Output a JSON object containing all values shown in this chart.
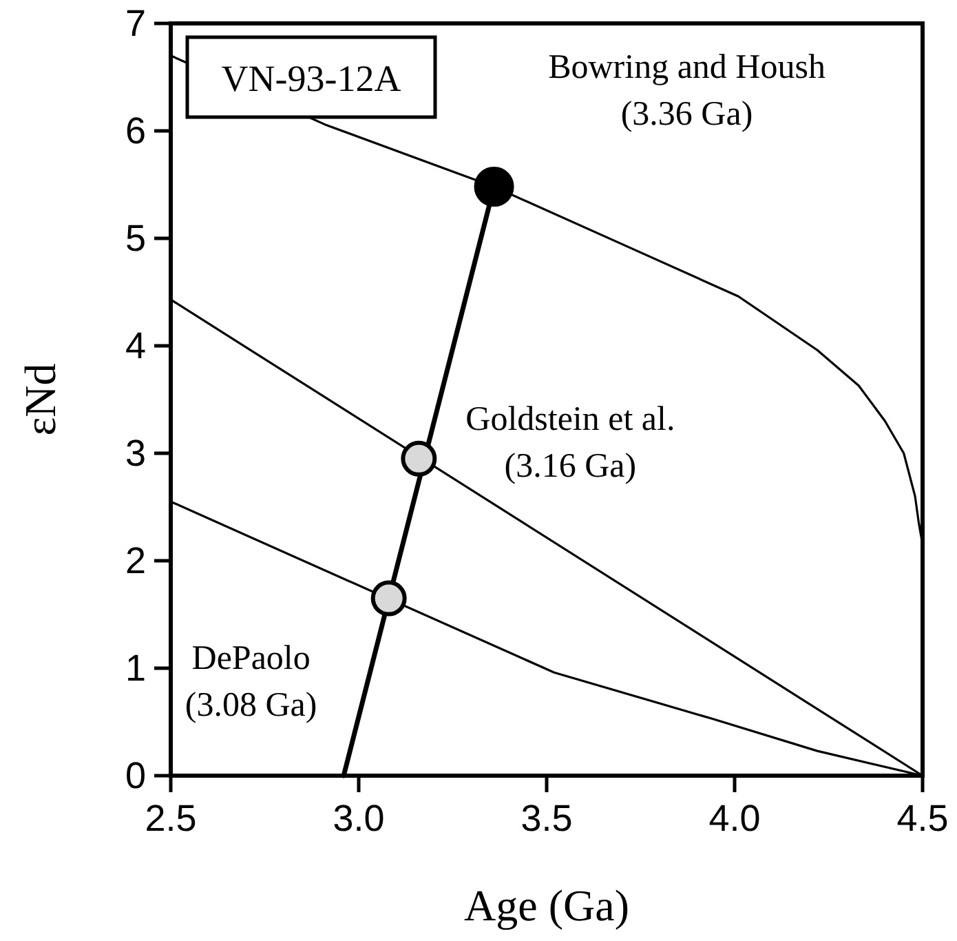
{
  "chart_data": {
    "type": "line",
    "xlabel": "Age (Ga)",
    "ylabel": "εNd",
    "xlim": [
      2.5,
      4.5
    ],
    "ylim": [
      0,
      7
    ],
    "xticks": [
      {
        "value": 2.5,
        "label": "2.5"
      },
      {
        "value": 3.0,
        "label": "3.0"
      },
      {
        "value": 3.5,
        "label": "3.5"
      },
      {
        "value": 4.0,
        "label": "4.0"
      },
      {
        "value": 4.5,
        "label": "4.5"
      }
    ],
    "yticks": [
      0,
      1,
      2,
      3,
      4,
      5,
      6,
      7
    ],
    "grid": false,
    "line_style": "solid",
    "series": [
      {
        "color": "#000000",
        "x": [
          2.5,
          2.91,
          3.36,
          3.73,
          4.01,
          4.22,
          4.33,
          4.4,
          4.45,
          4.48,
          4.49,
          4.5
        ],
        "values": [
          6.7,
          6.06,
          5.48,
          4.9,
          4.46,
          3.96,
          3.63,
          3.3,
          3.0,
          2.6,
          2.35,
          2.15
        ]
      },
      {
        "color": "#000000",
        "x": [
          2.5,
          4.5
        ],
        "values": [
          4.43,
          0
        ]
      },
      {
        "color": "#000000",
        "x": [
          2.5,
          3.52,
          3.94,
          4.22,
          4.5
        ],
        "values": [
          2.55,
          0.96,
          0.53,
          0.23,
          0
        ]
      },
      {
        "color": "#000000",
        "x": [
          2.96,
          3.36
        ],
        "values": [
          0,
          5.48
        ]
      },
      {
        "type": "scatter",
        "color": "#000000",
        "marker": "circle",
        "x": [
          3.36
        ],
        "values": [
          5.48
        ]
      },
      {
        "type": "scatter",
        "color": "#d9d9d9",
        "marker": "circle",
        "x": [
          3.16,
          3.08
        ],
        "values": [
          2.95,
          1.65
        ]
      }
    ],
    "annotations": [
      "VN-93-12A",
      {
        "text": "Bowring and Housh\n(3.36 Ga)",
        "x": 3.36,
        "y": 5.48
      },
      {
        "text": "Goldstein et al.\n(3.16 Ga)",
        "x": 3.16,
        "y": 2.95
      },
      {
        "text": "DePaolo\n(3.08 Ga)",
        "x": 3.08,
        "y": 1.65
      }
    ]
  }
}
